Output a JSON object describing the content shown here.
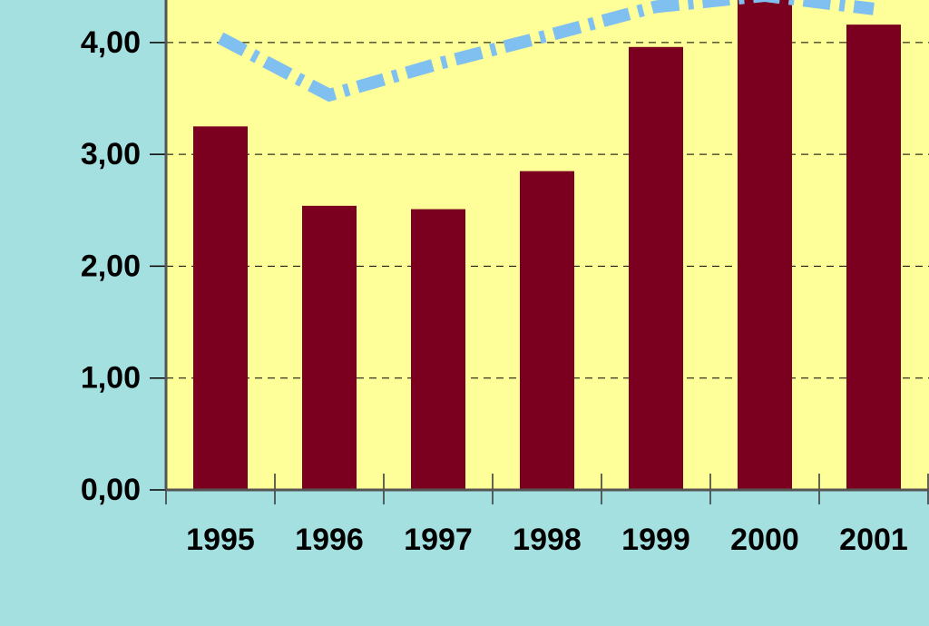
{
  "chart_data": {
    "type": "bar",
    "categories": [
      "1995",
      "1996",
      "1997",
      "1998",
      "1999",
      "2000",
      "2001"
    ],
    "series": [
      {
        "type": "bar",
        "color": "#7b0020",
        "values": [
          3.25,
          2.54,
          2.51,
          2.85,
          3.96,
          4.5,
          4.16
        ]
      },
      {
        "type": "line",
        "color": "#80c0f0",
        "values": [
          4.04,
          3.53,
          3.81,
          4.06,
          4.32,
          4.42,
          4.3
        ]
      }
    ],
    "ylim": [
      0,
      4.38
    ],
    "yticks": [
      {
        "value": 0,
        "label": "0,00"
      },
      {
        "value": 1,
        "label": "1,00"
      },
      {
        "value": 2,
        "label": "2,00"
      },
      {
        "value": 3,
        "label": "3,00"
      },
      {
        "value": 4,
        "label": "4,00"
      }
    ],
    "grid": true,
    "plot_color": "#ffff99"
  }
}
